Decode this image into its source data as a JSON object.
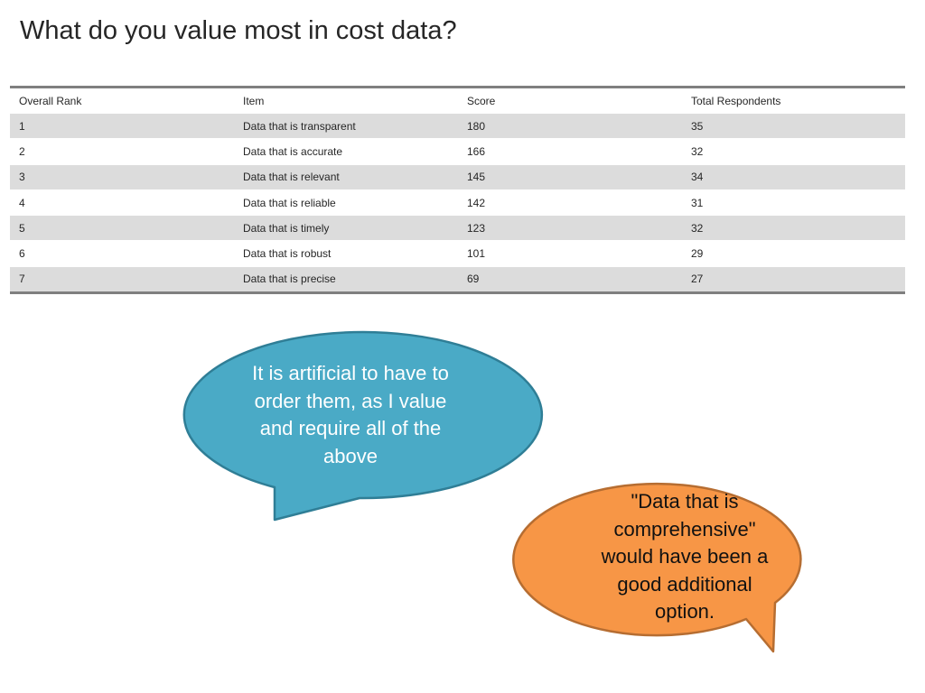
{
  "title": "What do you value most in cost data?",
  "table": {
    "headers": [
      "Overall Rank",
      "Item",
      "Score",
      "Total Respondents"
    ],
    "rows": [
      [
        "1",
        "Data that is transparent",
        "180",
        "35"
      ],
      [
        "2",
        "Data that is accurate",
        "166",
        "32"
      ],
      [
        "3",
        "Data that is relevant",
        "145",
        "34"
      ],
      [
        "4",
        "Data that is reliable",
        "142",
        "31"
      ],
      [
        "5",
        "Data that is timely",
        "123",
        "32"
      ],
      [
        "6",
        "Data that is robust",
        "101",
        "29"
      ],
      [
        "7",
        "Data that is precise",
        "69",
        "27"
      ]
    ]
  },
  "callouts": {
    "blue": {
      "text": "It is artificial to have to order them, as I value and require all of the above",
      "fill": "#4aaac6",
      "stroke": "#2f7e96"
    },
    "orange": {
      "text": "\"Data that is comprehensive\" would have been a good additional option.",
      "fill": "#f79646",
      "stroke": "#b66d31"
    }
  },
  "colors": {
    "row_shade": "#dcdcdc",
    "table_rule": "#7f7f7f",
    "text": "#262626"
  }
}
